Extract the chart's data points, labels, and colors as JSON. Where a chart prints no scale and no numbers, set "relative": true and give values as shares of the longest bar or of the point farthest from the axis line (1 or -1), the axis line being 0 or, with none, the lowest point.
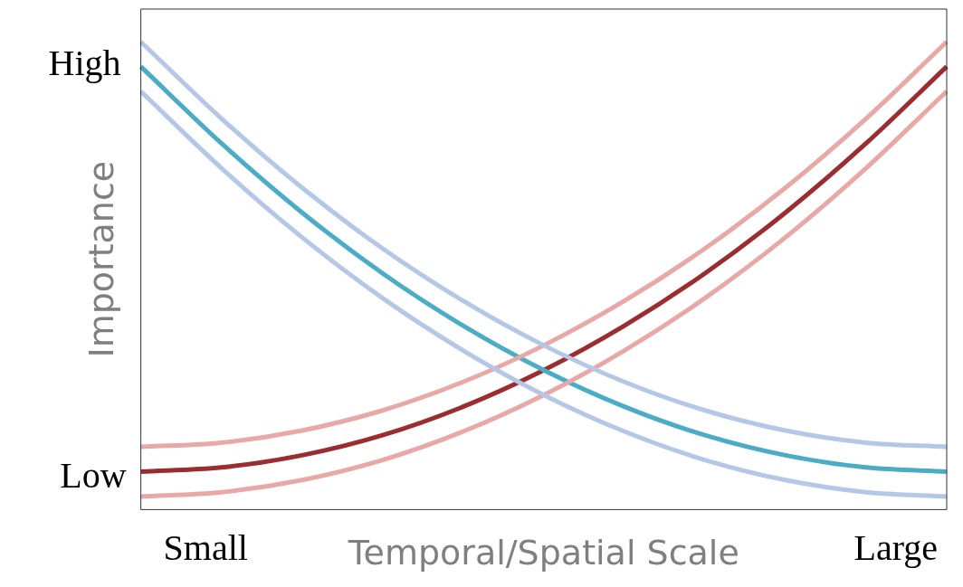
{
  "chart_data": {
    "type": "line",
    "relative": true,
    "xlabel": "Temporal/Spatial Scale",
    "ylabel": "Importance",
    "annotations": [
      "High",
      "Low",
      "Small",
      "Large"
    ],
    "legend": false,
    "grid": false,
    "categories": [
      null,
      null,
      null,
      null,
      null,
      null,
      null,
      null,
      null,
      null,
      null
    ],
    "series": [
      {
        "color": "#b4c7e7",
        "values": [
          1.0,
          0.836,
          0.688,
          0.558,
          0.446,
          0.351,
          0.273,
          0.212,
          0.169,
          0.143,
          0.134
        ]
      },
      {
        "color": "#b4c7e7",
        "values": [
          0.894,
          0.73,
          0.582,
          0.452,
          0.34,
          0.245,
          0.167,
          0.106,
          0.063,
          0.037,
          0.028
        ]
      },
      {
        "color": "#e8a8a8",
        "values": [
          0.134,
          0.143,
          0.169,
          0.212,
          0.273,
          0.351,
          0.446,
          0.558,
          0.688,
          0.836,
          1.0
        ]
      },
      {
        "color": "#e8a8a8",
        "values": [
          0.028,
          0.037,
          0.063,
          0.106,
          0.167,
          0.245,
          0.34,
          0.452,
          0.582,
          0.73,
          0.894
        ]
      },
      {
        "color": "#4bacc6",
        "values": [
          0.947,
          0.783,
          0.635,
          0.505,
          0.393,
          0.298,
          0.22,
          0.159,
          0.116,
          0.09,
          0.081
        ]
      },
      {
        "color": "#9b2d30",
        "values": [
          0.081,
          0.09,
          0.116,
          0.159,
          0.22,
          0.298,
          0.393,
          0.505,
          0.635,
          0.783,
          0.947
        ]
      }
    ]
  }
}
